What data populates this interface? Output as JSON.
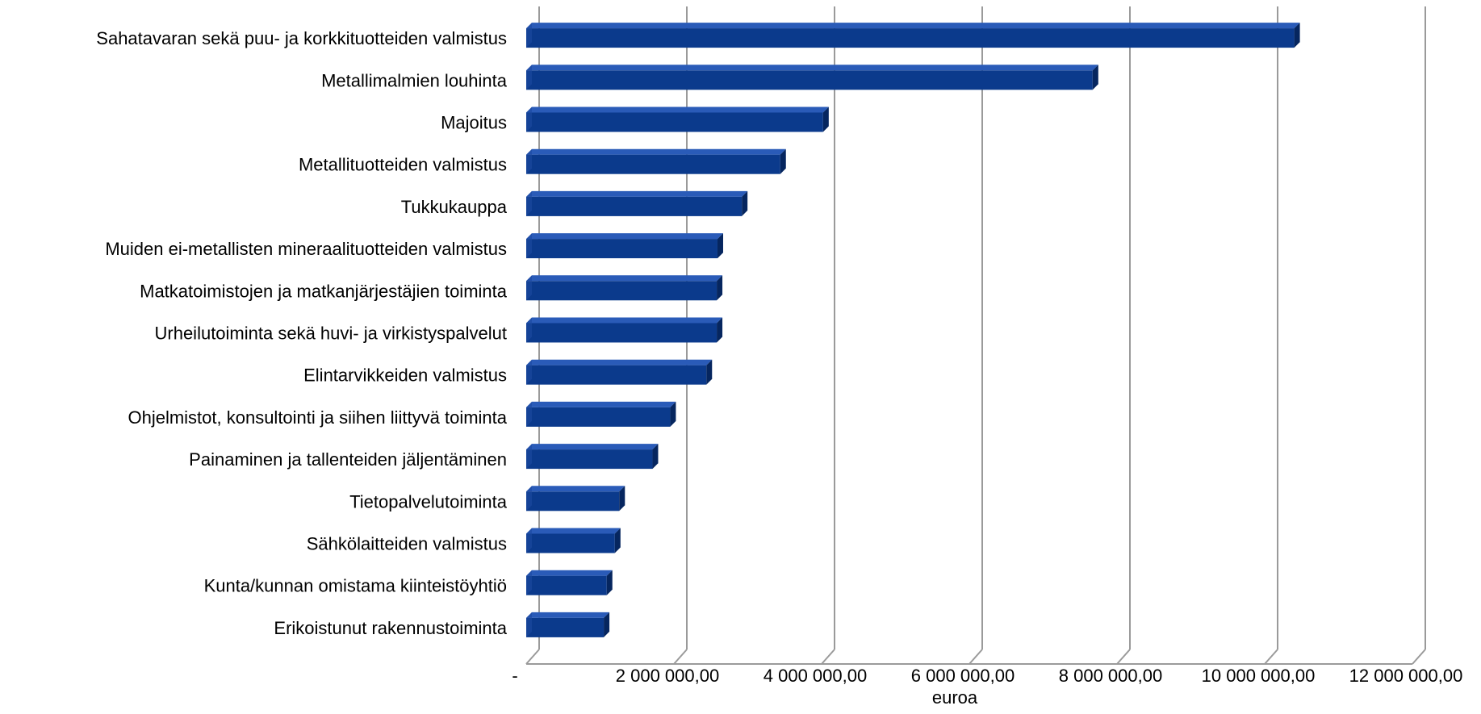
{
  "chart_data": {
    "type": "bar",
    "orientation": "horizontal",
    "style": "3d",
    "title": "",
    "xlabel": "euroa",
    "ylabel": "",
    "xlim": [
      0,
      12000000
    ],
    "grid": true,
    "legend": "none",
    "bar_color": "#0B3A8C",
    "categories": [
      "Sahatavaran sekä puu- ja korkkituotteiden valmistus",
      "Metallimalmien louhinta",
      "Majoitus",
      "Metallituotteiden valmistus ",
      "Tukkukauppa",
      "Muiden ei-metallisten mineraalituotteiden valmistus",
      "Matkatoimistojen ja matkanjärjestäjien toiminta",
      "Urheilutoiminta sekä huvi- ja virkistyspalvelut",
      "Elintarvikkeiden valmistus",
      "Ohjelmistot, konsultointi ja siihen liittyvä toiminta",
      "Painaminen ja tallenteiden jäljentäminen",
      "Tietopalvelutoiminta",
      "Sähkölaitteiden valmistus",
      "Kunta/kunnan omistama kiinteistöyhtiö",
      "Erikoistunut rakennustoiminta"
    ],
    "values": [
      10400000,
      7670000,
      4020000,
      3440000,
      2920000,
      2590000,
      2580000,
      2580000,
      2440000,
      1950000,
      1710000,
      1260000,
      1200000,
      1090000,
      1050000
    ],
    "tick_values": [
      0,
      2000000,
      4000000,
      6000000,
      8000000,
      10000000,
      12000000
    ],
    "tick_labels": [
      "-",
      "2 000 000,00",
      "4 000 000,00",
      "6 000 000,00",
      "8 000 000,00",
      "10 000 000,00",
      "12 000 000,00"
    ]
  }
}
